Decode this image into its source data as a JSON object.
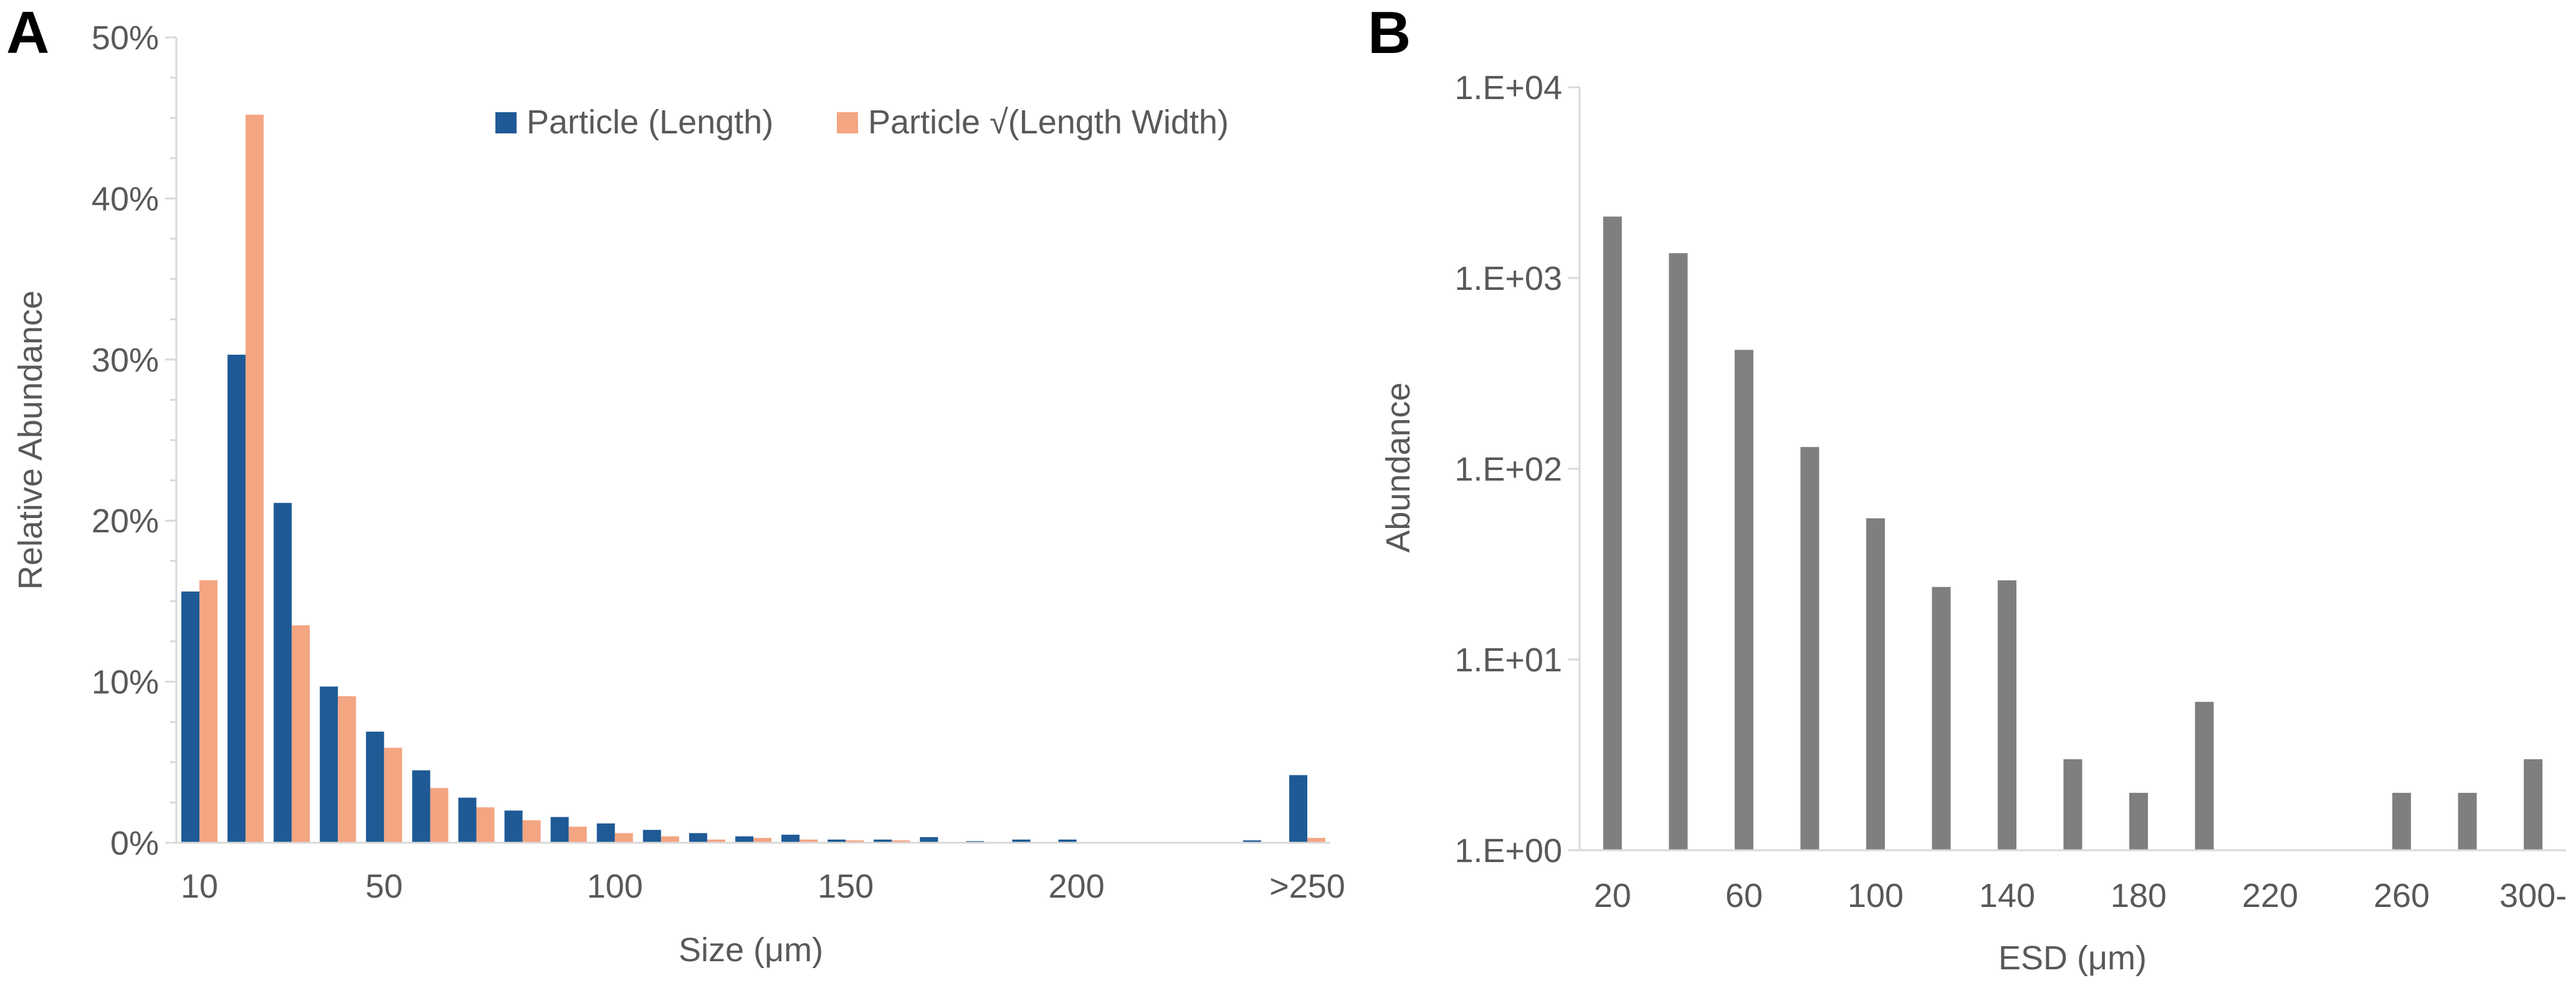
{
  "chart_data": [
    {
      "panel": "A",
      "type": "bar",
      "xlabel": "Size (μm)",
      "ylabel": "Relative Abundance",
      "ylim": [
        0,
        50
      ],
      "y_tick_labels": [
        "0%",
        "10%",
        "20%",
        "30%",
        "40%",
        "50%"
      ],
      "x_tick_labels": [
        "10",
        "50",
        "100",
        "150",
        "200",
        ">250"
      ],
      "x_tick_bins": [
        1,
        5,
        10,
        15,
        20,
        25
      ],
      "legend_position": "top-right",
      "series": [
        {
          "name": "Particle (Length)",
          "color": "#1f5a96",
          "values": [
            15.6,
            30.3,
            21.1,
            9.7,
            6.9,
            4.5,
            2.8,
            2.0,
            1.6,
            1.2,
            0.8,
            0.6,
            0.4,
            0.5,
            0.2,
            0.2,
            0.35,
            0.1,
            0.2,
            0.2,
            0.05,
            0.05,
            0.05,
            0.15,
            4.2
          ]
        },
        {
          "name": "Particle √(Length Width)",
          "color": "#f4a582",
          "values": [
            16.3,
            45.2,
            13.5,
            9.1,
            5.9,
            3.4,
            2.2,
            1.4,
            1.0,
            0.6,
            0.4,
            0.2,
            0.3,
            0.2,
            0.15,
            0.15,
            0.05,
            0.05,
            0.05,
            0.05,
            0.05,
            0.05,
            0.05,
            0.05,
            0.3
          ]
        }
      ]
    },
    {
      "panel": "B",
      "type": "bar",
      "xlabel": "ESD (μm)",
      "ylabel": "Abundance",
      "y_scale": "log",
      "ylim": [
        1,
        10000
      ],
      "y_tick_labels": [
        "1.E+00",
        "1.E+01",
        "1.E+02",
        "1.E+03",
        "1.E+04"
      ],
      "x_tick_labels": [
        "20",
        "60",
        "100",
        "140",
        "180",
        "220",
        "260",
        "300-"
      ],
      "x_tick_bins": [
        1,
        3,
        5,
        7,
        9,
        11,
        13,
        15
      ],
      "series": [
        {
          "color": "#7f7f7f",
          "values": [
            2100,
            1350,
            420,
            130,
            55,
            24,
            26,
            3,
            2,
            6,
            0,
            0,
            2,
            2,
            3
          ]
        }
      ]
    }
  ]
}
